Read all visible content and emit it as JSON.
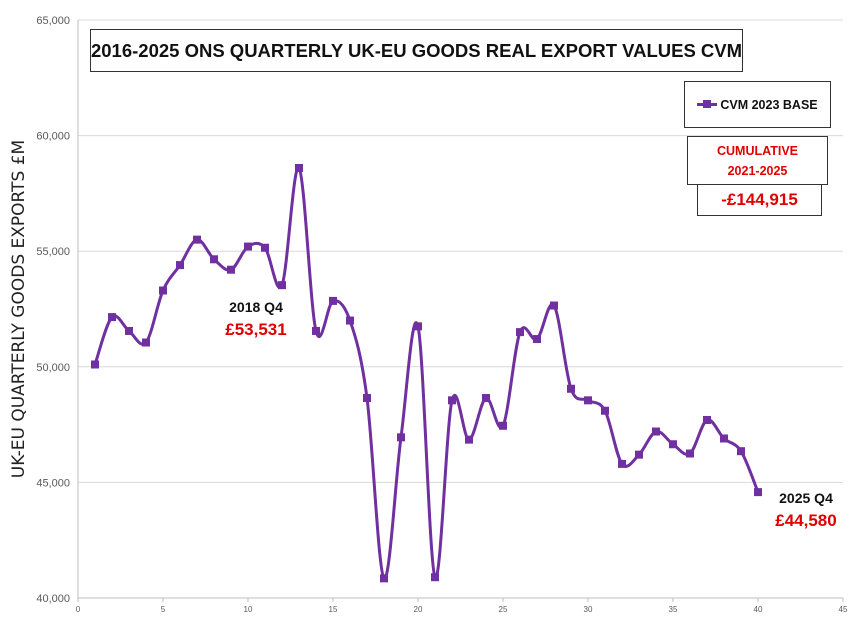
{
  "chart_data": {
    "type": "line",
    "title": "2016-2025 ONS QUARTERLY UK-EU GOODS REAL EXPORT VALUES CVM",
    "ylabel": "UK-EU QUARTERLY GOODS EXPORTS £M",
    "xlabel": "",
    "xlim": [
      0,
      45
    ],
    "ylim": [
      40000,
      65000
    ],
    "x_ticks": [
      0,
      5,
      10,
      15,
      20,
      25,
      30,
      35,
      40,
      45
    ],
    "y_ticks": [
      "40,000",
      "45,000",
      "50,000",
      "55,000",
      "60,000",
      "65,000"
    ],
    "y_tick_values": [
      40000,
      45000,
      50000,
      55000,
      60000,
      65000
    ],
    "grid": "horizontal",
    "series": [
      {
        "name": "CVM 2023 BASE",
        "color": "#7030a0",
        "x": [
          1,
          2,
          3,
          4,
          5,
          6,
          7,
          8,
          9,
          10,
          11,
          12,
          13,
          14,
          15,
          16,
          17,
          18,
          19,
          20,
          21,
          22,
          23,
          24,
          25,
          26,
          27,
          28,
          29,
          30,
          31,
          32,
          33,
          34,
          35,
          36,
          37,
          38,
          39,
          40
        ],
        "values": [
          50100,
          52150,
          51550,
          51050,
          53300,
          54400,
          55500,
          54650,
          54200,
          55200,
          55150,
          53531,
          58600,
          51550,
          52850,
          52000,
          48650,
          40850,
          46950,
          51750,
          40900,
          48550,
          46850,
          48650,
          47450,
          51500,
          51200,
          52650,
          49050,
          48550,
          48100,
          45800,
          46200,
          47200,
          46650,
          46250,
          47700,
          46900,
          46350,
          44580
        ]
      }
    ],
    "annotations": [
      {
        "label": "2018 Q4",
        "value": "£53,531"
      },
      {
        "label": "2025 Q4",
        "value": "£44,580"
      }
    ],
    "cumulative": {
      "label_line1": "CUMULATIVE",
      "label_line2": "2021-2025",
      "value": "-£144,915"
    }
  }
}
